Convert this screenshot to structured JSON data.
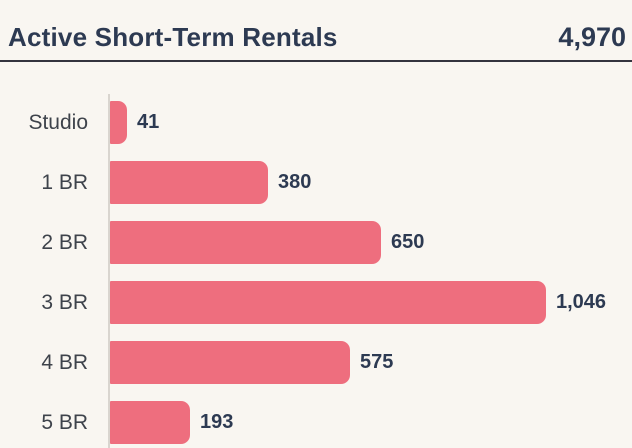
{
  "header": {
    "title": "Active Short-Term Rentals",
    "total": "4,970"
  },
  "chart_data": {
    "type": "bar",
    "orientation": "horizontal",
    "title": "Active Short-Term Rentals",
    "total_label": "4,970",
    "categories": [
      "Studio",
      "1 BR",
      "2 BR",
      "3 BR",
      "4 BR",
      "5 BR"
    ],
    "values": [
      41,
      380,
      650,
      1046,
      575,
      193
    ],
    "value_labels": [
      "41",
      "380",
      "650",
      "1,046",
      "575",
      "193"
    ],
    "xlabel": "",
    "ylabel": "",
    "xlim": [
      0,
      1100
    ],
    "grid": false,
    "legend": "none",
    "value_label_position": "outside-end",
    "colors": {
      "bar": "#ee6e7e",
      "value_text": "#2d3a52",
      "category_text": "#3e434b",
      "axis_line": "#d9d5cf",
      "divider": "#34343e",
      "background": "#f9f6f1"
    }
  }
}
